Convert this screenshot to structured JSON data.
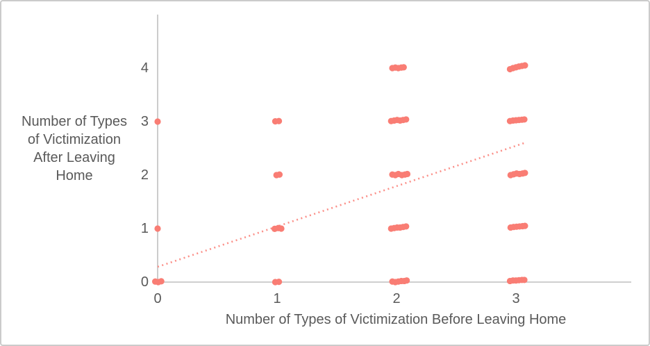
{
  "chart_data": {
    "type": "scatter",
    "title": "",
    "xlabel": "Number of Types of Victimization Before Leaving Home",
    "ylabel": "Number of Types\nof Victimization\nAfter Leaving\nHome",
    "x_ticks": [
      0,
      1,
      2,
      3
    ],
    "y_ticks": [
      0,
      1,
      2,
      3,
      4
    ],
    "xlim": [
      0,
      3.97
    ],
    "ylim": [
      0,
      5
    ],
    "grid": false,
    "legend": "none",
    "combinations_present": [
      [
        0,
        0
      ],
      [
        0,
        1
      ],
      [
        0,
        3
      ],
      [
        1,
        0
      ],
      [
        1,
        1
      ],
      [
        1,
        2
      ],
      [
        1,
        3
      ],
      [
        2,
        0
      ],
      [
        2,
        1
      ],
      [
        2,
        2
      ],
      [
        2,
        3
      ],
      [
        2,
        4
      ],
      [
        3,
        0
      ],
      [
        3,
        1
      ],
      [
        3,
        2
      ],
      [
        3,
        3
      ],
      [
        3,
        4
      ]
    ],
    "points": [
      [
        -0.02,
        0.01
      ],
      [
        0.005,
        0
      ],
      [
        0.03,
        0.015
      ],
      [
        0,
        1
      ],
      [
        0,
        3
      ],
      [
        0.985,
        0
      ],
      [
        1.015,
        0.005
      ],
      [
        0.98,
        0.995
      ],
      [
        1.01,
        1.01
      ],
      [
        1.035,
        1.0
      ],
      [
        0.995,
        2.0
      ],
      [
        1.02,
        2.01
      ],
      [
        0.985,
        3.005
      ],
      [
        1.015,
        3.01
      ],
      [
        1.965,
        0.01
      ],
      [
        1.99,
        0.0
      ],
      [
        2.015,
        0.01
      ],
      [
        2.04,
        0.02
      ],
      [
        2.065,
        0.02
      ],
      [
        2.085,
        0.03
      ],
      [
        1.955,
        1.0
      ],
      [
        1.98,
        1.01
      ],
      [
        2.005,
        1.02
      ],
      [
        2.03,
        1.02
      ],
      [
        2.055,
        1.03
      ],
      [
        2.08,
        1.04
      ],
      [
        1.965,
        2.01
      ],
      [
        1.99,
        2.0
      ],
      [
        2.015,
        2.02
      ],
      [
        2.045,
        2.0
      ],
      [
        2.07,
        2.01
      ],
      [
        2.09,
        2.02
      ],
      [
        1.955,
        3.01
      ],
      [
        1.98,
        3.02
      ],
      [
        2.005,
        3.03
      ],
      [
        2.03,
        3.02
      ],
      [
        2.055,
        3.03
      ],
      [
        2.08,
        3.04
      ],
      [
        1.965,
        4.0
      ],
      [
        1.99,
        4.01
      ],
      [
        2.015,
        4.0
      ],
      [
        2.04,
        4.01
      ],
      [
        2.06,
        4.015
      ],
      [
        2.95,
        0.02
      ],
      [
        2.975,
        0.03
      ],
      [
        3.0,
        0.03
      ],
      [
        3.025,
        0.035
      ],
      [
        3.05,
        0.04
      ],
      [
        3.07,
        0.04
      ],
      [
        2.955,
        1.02
      ],
      [
        2.98,
        1.03
      ],
      [
        3.005,
        1.035
      ],
      [
        3.03,
        1.04
      ],
      [
        3.055,
        1.045
      ],
      [
        3.075,
        1.05
      ],
      [
        2.955,
        2.0
      ],
      [
        2.98,
        2.015
      ],
      [
        3.005,
        2.03
      ],
      [
        3.03,
        2.02
      ],
      [
        3.055,
        2.03
      ],
      [
        3.075,
        2.04
      ],
      [
        2.95,
        3.01
      ],
      [
        2.975,
        3.02
      ],
      [
        3.0,
        3.025
      ],
      [
        3.025,
        3.03
      ],
      [
        3.05,
        3.035
      ],
      [
        3.07,
        3.04
      ],
      [
        2.95,
        3.98
      ],
      [
        2.975,
        4.0
      ],
      [
        3.0,
        4.015
      ],
      [
        3.025,
        4.03
      ],
      [
        3.05,
        4.04
      ],
      [
        3.075,
        4.05
      ]
    ],
    "trendline": {
      "x1": 0,
      "y1": 0.285,
      "x2": 3.07,
      "y2": 2.6,
      "style": "dotted"
    },
    "colors": {
      "point": "#f97d74",
      "trend": "#fb8f88",
      "axis": "#bfbfbf",
      "text": "#595959"
    }
  }
}
